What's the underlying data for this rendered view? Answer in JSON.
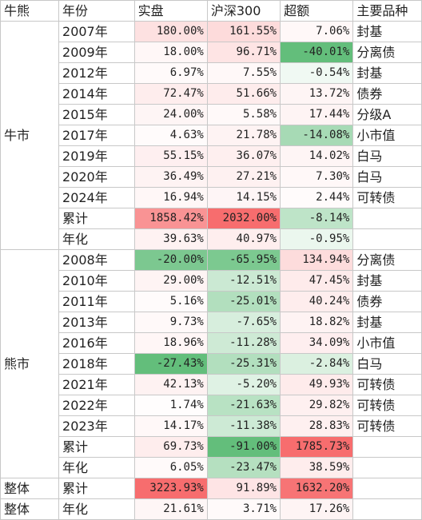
{
  "header": {
    "group": "牛熊",
    "year": "年份",
    "actual": "实盘",
    "csi300": "沪深300",
    "excess": "超额",
    "variety": "主要品种"
  },
  "bull": {
    "label": "牛市",
    "rows": [
      {
        "year": "2007年",
        "actual": "180.00%",
        "csi300": "161.55%",
        "excess": "7.06%",
        "variety": "封基"
      },
      {
        "year": "2009年",
        "actual": "18.00%",
        "csi300": "96.71%",
        "excess": "-40.01%",
        "variety": "分离债"
      },
      {
        "year": "2012年",
        "actual": "6.97%",
        "csi300": "7.55%",
        "excess": "-0.54%",
        "variety": "封基"
      },
      {
        "year": "2014年",
        "actual": "72.47%",
        "csi300": "51.66%",
        "excess": "13.72%",
        "variety": "债券"
      },
      {
        "year": "2015年",
        "actual": "24.00%",
        "csi300": "5.58%",
        "excess": "17.44%",
        "variety": "分级A"
      },
      {
        "year": "2017年",
        "actual": "4.63%",
        "csi300": "21.78%",
        "excess": "-14.08%",
        "variety": "小市值"
      },
      {
        "year": "2019年",
        "actual": "55.15%",
        "csi300": "36.07%",
        "excess": "14.02%",
        "variety": "白马"
      },
      {
        "year": "2020年",
        "actual": "36.49%",
        "csi300": "27.21%",
        "excess": "7.30%",
        "variety": "白马"
      },
      {
        "year": "2024年",
        "actual": "16.94%",
        "csi300": "14.15%",
        "excess": "2.44%",
        "variety": "可转债"
      }
    ],
    "total": {
      "year": "累计",
      "actual": "1858.42%",
      "csi300": "2032.00%",
      "excess": "-8.14%",
      "variety": ""
    },
    "annual": {
      "year": "年化",
      "actual": "39.63%",
      "csi300": "40.97%",
      "excess": "-0.95%",
      "variety": ""
    }
  },
  "bear": {
    "label": "熊市",
    "rows": [
      {
        "year": "2008年",
        "actual": "-20.00%",
        "csi300": "-65.95%",
        "excess": "134.94%",
        "variety": "分离债"
      },
      {
        "year": "2010年",
        "actual": "29.00%",
        "csi300": "-12.51%",
        "excess": "47.45%",
        "variety": "封基"
      },
      {
        "year": "2011年",
        "actual": "5.16%",
        "csi300": "-25.01%",
        "excess": "40.24%",
        "variety": "债券"
      },
      {
        "year": "2013年",
        "actual": "9.73%",
        "csi300": "-7.65%",
        "excess": "18.82%",
        "variety": "封基"
      },
      {
        "year": "2016年",
        "actual": "18.96%",
        "csi300": "-11.28%",
        "excess": "34.09%",
        "variety": "小市值"
      },
      {
        "year": "2018年",
        "actual": "-27.43%",
        "csi300": "-25.31%",
        "excess": "-2.84%",
        "variety": "白马"
      },
      {
        "year": "2021年",
        "actual": "42.13%",
        "csi300": "-5.20%",
        "excess": "49.93%",
        "variety": "可转债"
      },
      {
        "year": "2022年",
        "actual": "1.74%",
        "csi300": "-21.63%",
        "excess": "29.82%",
        "variety": "可转债"
      },
      {
        "year": "2023年",
        "actual": "14.17%",
        "csi300": "-11.38%",
        "excess": "28.83%",
        "variety": "可转债"
      }
    ],
    "total": {
      "year": "累计",
      "actual": "69.73%",
      "csi300": "-91.00%",
      "excess": "1785.73%",
      "variety": ""
    },
    "annual": {
      "year": "年化",
      "actual": "6.05%",
      "csi300": "-23.47%",
      "excess": "38.59%",
      "variety": ""
    }
  },
  "overall": [
    {
      "group": "整体",
      "year": "累计",
      "actual": "3223.93%",
      "csi300": "91.89%",
      "excess": "1632.20%",
      "variety": ""
    },
    {
      "group": "整体",
      "year": "年化",
      "actual": "21.61%",
      "csi300": "3.71%",
      "excess": "17.26%",
      "variety": ""
    }
  ]
}
